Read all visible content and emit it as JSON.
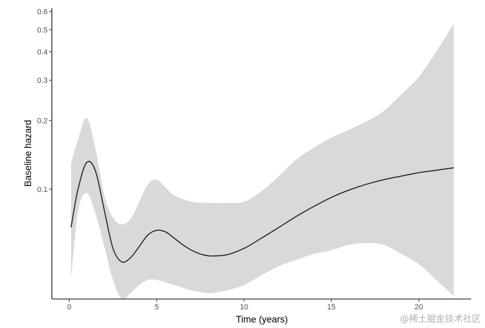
{
  "chart_data": {
    "type": "line",
    "title": "",
    "xlabel": "Time (years)",
    "ylabel": "Baseline hazard",
    "xlim": [
      -1,
      23
    ],
    "ylim": [
      0.033,
      0.62
    ],
    "yscale": "log",
    "x_ticks": [
      0,
      5,
      10,
      15,
      20
    ],
    "y_ticks": [
      0.1,
      0.2,
      0.3,
      0.4,
      0.5,
      0.6
    ],
    "grid": false,
    "legend": "none",
    "colors": {
      "line": "#1a1a1a",
      "ribbon": "#d9d9d9",
      "axis": "#000000"
    },
    "series": [
      {
        "x": [
          0.1,
          0.5,
          1.0,
          1.5,
          2.0,
          2.5,
          3.0,
          3.5,
          4.0,
          4.5,
          5.0,
          5.5,
          6.0,
          6.5,
          7.0,
          7.5,
          8.0,
          9.0,
          10.0,
          11.0,
          12.0,
          13.0,
          14.0,
          15.0,
          16.0,
          17.0,
          18.0,
          19.0,
          20.0,
          21.0,
          22.0
        ],
        "y": [
          0.068,
          0.1,
          0.131,
          0.12,
          0.081,
          0.055,
          0.048,
          0.05,
          0.056,
          0.063,
          0.066,
          0.065,
          0.061,
          0.057,
          0.054,
          0.052,
          0.051,
          0.0515,
          0.055,
          0.061,
          0.068,
          0.076,
          0.084,
          0.092,
          0.099,
          0.105,
          0.11,
          0.114,
          0.118,
          0.121,
          0.124
        ]
      }
    ],
    "band": {
      "x": [
        0.1,
        0.5,
        1.0,
        1.5,
        2.0,
        2.5,
        3.0,
        3.5,
        4.0,
        4.5,
        5.0,
        5.5,
        6.0,
        7.0,
        8.0,
        9.0,
        10.0,
        11.0,
        12.0,
        13.0,
        14.0,
        15.0,
        16.0,
        17.0,
        18.0,
        19.0,
        20.0,
        21.0,
        22.0
      ],
      "upper": [
        0.13,
        0.165,
        0.205,
        0.15,
        0.094,
        0.075,
        0.07,
        0.074,
        0.088,
        0.105,
        0.11,
        0.102,
        0.094,
        0.088,
        0.087,
        0.087,
        0.088,
        0.098,
        0.114,
        0.135,
        0.152,
        0.168,
        0.182,
        0.198,
        0.22,
        0.26,
        0.31,
        0.4,
        0.53
      ],
      "lower": [
        0.04,
        0.08,
        0.096,
        0.078,
        0.056,
        0.04,
        0.033,
        0.035,
        0.038,
        0.04,
        0.04,
        0.039,
        0.038,
        0.036,
        0.035,
        0.036,
        0.038,
        0.042,
        0.046,
        0.049,
        0.052,
        0.054,
        0.057,
        0.058,
        0.057,
        0.052,
        0.047,
        0.04,
        0.034
      ]
    }
  },
  "watermark": "@稀土掘金技术社区"
}
